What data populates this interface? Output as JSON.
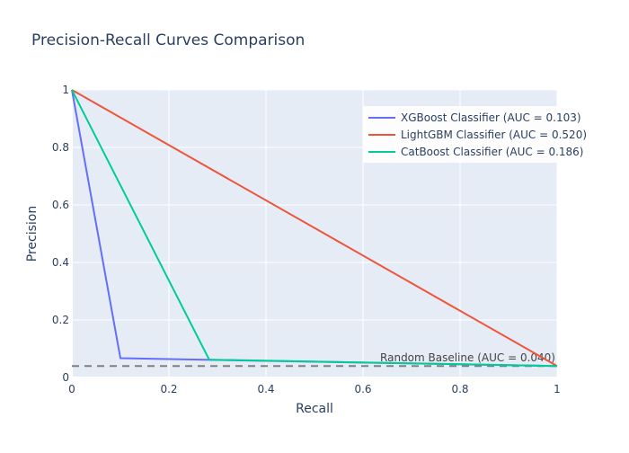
{
  "chart_data": {
    "type": "line",
    "title": "Precision-Recall Curves Comparison",
    "xlabel": "Recall",
    "ylabel": "Precision",
    "xlim": [
      0,
      1
    ],
    "ylim": [
      0,
      1
    ],
    "grid": true,
    "legend_position": "top-right",
    "x_ticks": [
      {
        "value": 0,
        "label": "0"
      },
      {
        "value": 0.2,
        "label": "0.2"
      },
      {
        "value": 0.4,
        "label": "0.4"
      },
      {
        "value": 0.6,
        "label": "0.6"
      },
      {
        "value": 0.8,
        "label": "0.8"
      },
      {
        "value": 1,
        "label": "1"
      }
    ],
    "y_ticks": [
      {
        "value": 0,
        "label": "0"
      },
      {
        "value": 0.2,
        "label": "0.2"
      },
      {
        "value": 0.4,
        "label": "0.4"
      },
      {
        "value": 0.6,
        "label": "0.6"
      },
      {
        "value": 0.8,
        "label": "0.8"
      },
      {
        "value": 1,
        "label": "1"
      }
    ],
    "series": [
      {
        "name": "XGBoost Classifier (AUC = 0.103)",
        "color": "#636efa",
        "x": [
          0,
          0.1,
          1
        ],
        "y": [
          1,
          0.067,
          0.04
        ]
      },
      {
        "name": "LightGBM Classifier (AUC = 0.520)",
        "color": "#ef553b",
        "x": [
          0,
          1
        ],
        "y": [
          1,
          0.04
        ]
      },
      {
        "name": "CatBoost Classifier (AUC = 0.186)",
        "color": "#00cc96",
        "x": [
          0,
          0.283,
          1
        ],
        "y": [
          1,
          0.062,
          0.04
        ]
      }
    ],
    "baseline": {
      "label": "Random Baseline (AUC = 0.040)",
      "value": 0.04,
      "color": "#808080"
    }
  }
}
